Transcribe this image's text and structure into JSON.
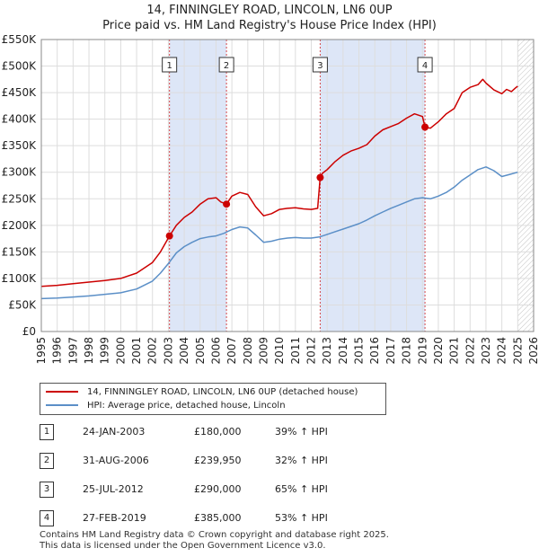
{
  "title": "14, FINNINGLEY ROAD, LINCOLN, LN6 0UP",
  "subtitle": "Price paid vs. HM Land Registry's House Price Index (HPI)",
  "colors": {
    "property_line": "#cc0000",
    "hpi_line": "#5b8fc7",
    "shade": "#dde6f7",
    "grid": "#dddddd",
    "future_hatch": "#999999"
  },
  "legend": {
    "property_label": "14, FINNINGLEY ROAD, LINCOLN, LN6 0UP (detached house)",
    "hpi_label": "HPI: Average price, detached house, Lincoln"
  },
  "transactions": [
    {
      "num": "1",
      "date": "24-JAN-2003",
      "price": "£180,000",
      "hpi": "39% ↑ HPI"
    },
    {
      "num": "2",
      "date": "31-AUG-2006",
      "price": "£239,950",
      "hpi": "32% ↑ HPI"
    },
    {
      "num": "3",
      "date": "25-JUL-2012",
      "price": "£290,000",
      "hpi": "65% ↑ HPI"
    },
    {
      "num": "4",
      "date": "27-FEB-2019",
      "price": "£385,000",
      "hpi": "53% ↑ HPI"
    }
  ],
  "footer": {
    "line1": "Contains HM Land Registry data © Crown copyright and database right 2025.",
    "line2": "This data is licensed under the Open Government Licence v3.0."
  },
  "chart_data": {
    "type": "line",
    "title": "14, FINNINGLEY ROAD, LINCOLN, LN6 0UP",
    "xlabel": "",
    "ylabel": "",
    "xlim": [
      1995,
      2026
    ],
    "ylim": [
      0,
      550000
    ],
    "x_ticks": [
      1995,
      1996,
      1997,
      1998,
      1999,
      2000,
      2001,
      2002,
      2003,
      2004,
      2005,
      2006,
      2007,
      2008,
      2009,
      2010,
      2011,
      2012,
      2013,
      2014,
      2015,
      2016,
      2017,
      2018,
      2019,
      2020,
      2021,
      2022,
      2023,
      2024,
      2025,
      2026
    ],
    "y_ticks": [
      0,
      50000,
      100000,
      150000,
      200000,
      250000,
      300000,
      350000,
      400000,
      450000,
      500000,
      550000
    ],
    "y_tick_labels": [
      "£0",
      "£50K",
      "£100K",
      "£150K",
      "£200K",
      "£250K",
      "£300K",
      "£350K",
      "£400K",
      "£450K",
      "£500K",
      "£550K"
    ],
    "shaded_ranges": [
      [
        2003.07,
        2006.66
      ],
      [
        2012.56,
        2019.16
      ]
    ],
    "future_from": 2025.0,
    "sales": [
      {
        "label": "1",
        "x": 2003.07,
        "y": 180000
      },
      {
        "label": "2",
        "x": 2006.66,
        "y": 239950
      },
      {
        "label": "3",
        "x": 2012.56,
        "y": 290000
      },
      {
        "label": "4",
        "x": 2019.16,
        "y": 385000
      }
    ],
    "series": [
      {
        "name": "14, FINNINGLEY ROAD, LINCOLN, LN6 0UP (detached house)",
        "color": "#cc0000",
        "x": [
          1995,
          1996,
          1997,
          1998,
          1999,
          2000,
          2001,
          2002,
          2002.5,
          2003.07,
          2003.5,
          2004,
          2004.5,
          2005,
          2005.5,
          2006,
          2006.3,
          2006.66,
          2007,
          2007.5,
          2008,
          2008.5,
          2009,
          2009.5,
          2010,
          2010.5,
          2011,
          2011.5,
          2012,
          2012.4,
          2012.56,
          2012.7,
          2013,
          2013.5,
          2014,
          2014.5,
          2015,
          2015.5,
          2016,
          2016.5,
          2017,
          2017.5,
          2018,
          2018.5,
          2019,
          2019.16,
          2019.5,
          2020,
          2020.5,
          2021,
          2021.5,
          2022,
          2022.5,
          2022.8,
          2023,
          2023.5,
          2024,
          2024.3,
          2024.6,
          2024.9,
          2025.0
        ],
        "y": [
          85000,
          87000,
          90000,
          93000,
          96000,
          100000,
          110000,
          130000,
          150000,
          180000,
          200000,
          215000,
          225000,
          240000,
          250000,
          252000,
          244000,
          239950,
          255000,
          262000,
          258000,
          235000,
          218000,
          222000,
          230000,
          232000,
          233000,
          231000,
          230000,
          232000,
          290000,
          298000,
          305000,
          320000,
          332000,
          340000,
          345000,
          352000,
          368000,
          380000,
          386000,
          392000,
          402000,
          410000,
          405000,
          385000,
          383000,
          395000,
          410000,
          420000,
          450000,
          460000,
          465000,
          475000,
          468000,
          455000,
          448000,
          456000,
          452000,
          460000,
          462000
        ]
      },
      {
        "name": "HPI: Average price, detached house, Lincoln",
        "color": "#5b8fc7",
        "x": [
          1995,
          1996,
          1997,
          1998,
          1999,
          2000,
          2001,
          2002,
          2002.5,
          2003,
          2003.5,
          2004,
          2004.5,
          2005,
          2005.5,
          2006,
          2006.5,
          2007,
          2007.5,
          2008,
          2008.5,
          2009,
          2009.5,
          2010,
          2010.5,
          2011,
          2011.5,
          2012,
          2012.5,
          2013,
          2013.5,
          2014,
          2014.5,
          2015,
          2015.5,
          2016,
          2016.5,
          2017,
          2017.5,
          2018,
          2018.5,
          2019,
          2019.5,
          2020,
          2020.5,
          2021,
          2021.5,
          2022,
          2022.5,
          2023,
          2023.5,
          2024,
          2024.5,
          2025.0
        ],
        "y": [
          62000,
          63000,
          65000,
          67000,
          70000,
          73000,
          80000,
          95000,
          110000,
          128000,
          148000,
          160000,
          168000,
          175000,
          178000,
          180000,
          185000,
          192000,
          197000,
          195000,
          182000,
          168000,
          170000,
          174000,
          176000,
          177000,
          176000,
          176000,
          178000,
          183000,
          188000,
          193000,
          198000,
          203000,
          210000,
          218000,
          225000,
          232000,
          238000,
          244000,
          250000,
          252000,
          250000,
          255000,
          262000,
          272000,
          285000,
          295000,
          305000,
          310000,
          303000,
          292000,
          296000,
          300000
        ]
      }
    ]
  }
}
